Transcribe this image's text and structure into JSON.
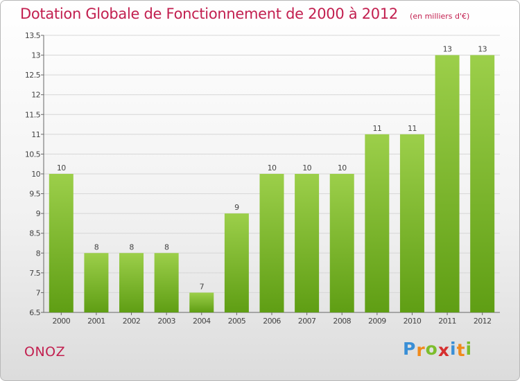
{
  "chart_data": {
    "type": "bar",
    "title": "Dotation Globale de Fonctionnement de 2000 à 2012",
    "unit": "(en milliers d'€)",
    "categories": [
      "2000",
      "2001",
      "2002",
      "2003",
      "2004",
      "2005",
      "2006",
      "2007",
      "2008",
      "2009",
      "2010",
      "2011",
      "2012"
    ],
    "values": [
      10,
      8,
      8,
      8,
      7,
      9,
      10,
      10,
      10,
      11,
      11,
      13,
      13
    ],
    "data_labels": [
      "10",
      "8",
      "8",
      "8",
      "7",
      "9",
      "10",
      "10",
      "10",
      "11",
      "11",
      "13",
      "13"
    ],
    "ylim": [
      6.5,
      13.5
    ],
    "yticks": [
      6.5,
      7,
      7.5,
      8,
      8.5,
      9,
      9.5,
      10,
      10.5,
      11,
      11.5,
      12,
      12.5,
      13,
      13.5
    ],
    "ytick_labels": [
      "6.5",
      "7",
      "7.5",
      "8",
      "8.5",
      "9",
      "9.5",
      "10",
      "10.5",
      "11",
      "11.5",
      "12",
      "12.5",
      "13",
      "13.5"
    ],
    "grid": true,
    "bar_color": "#7cbd2c",
    "xlabel": "",
    "ylabel": ""
  },
  "commune": "ONOZ",
  "logo": {
    "letters": [
      "P",
      "r",
      "o",
      "x",
      "i",
      "t",
      "i"
    ],
    "colors": [
      "#3a8fd6",
      "#f08a1c",
      "#7cbd2c",
      "#d62f2f",
      "#3a8fd6",
      "#f08a1c",
      "#7cbd2c"
    ]
  },
  "colors": {
    "accent": "#c21f4f",
    "axis": "#555555"
  }
}
